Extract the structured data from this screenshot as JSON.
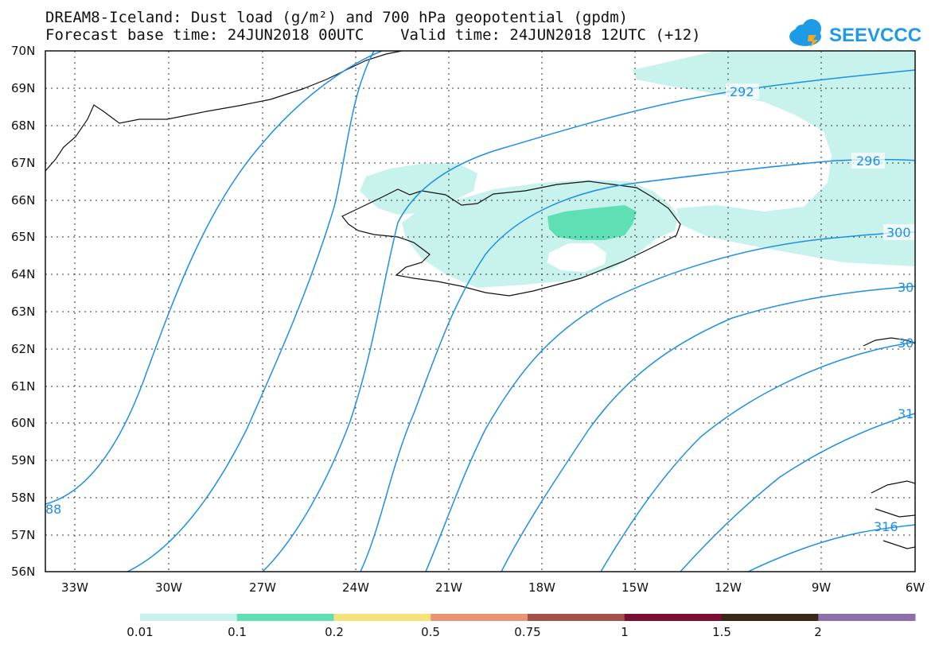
{
  "header": {
    "title_line1": "DREAM8-Iceland: Dust load (g/m²) and 700 hPa geopotential (gpdm)",
    "title_line2": "Forecast base time: 24JUN2018 00UTC    Valid time: 24JUN2018 12UTC (+12)",
    "logo_text": "SEEVCCC"
  },
  "map": {
    "lat_labels": [
      "70N",
      "69N",
      "68N",
      "67N",
      "66N",
      "65N",
      "64N",
      "63N",
      "62N",
      "61N",
      "60N",
      "59N",
      "58N",
      "57N",
      "56N"
    ],
    "lon_labels": [
      "33W",
      "30W",
      "27W",
      "24W",
      "21W",
      "18W",
      "15W",
      "12W",
      "9W",
      "6W"
    ],
    "contour_labels": [
      "292",
      "296",
      "300",
      "30",
      "30",
      "31",
      "316",
      "88"
    ],
    "contour_color": "#1e8fe6",
    "fill_color_low": "#c8f2ec",
    "fill_color_mid": "#5fe0b4"
  },
  "colorbar": {
    "labels": [
      "0.01",
      "0.1",
      "0.2",
      "0.5",
      "0.75",
      "1",
      "1.5",
      "2"
    ],
    "colors": [
      "#c8f2ec",
      "#5fe0b4",
      "#f5e27a",
      "#e99372",
      "#a3524a",
      "#7a0d32",
      "#3b2716",
      "#8e6fa8"
    ]
  }
}
